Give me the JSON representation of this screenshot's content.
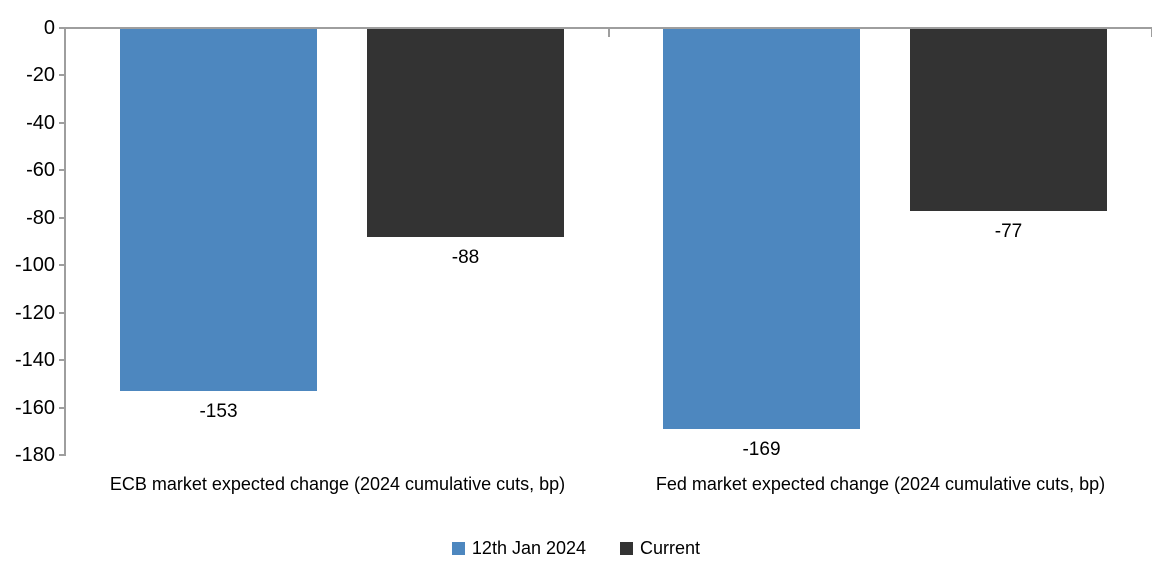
{
  "chart_data": {
    "type": "bar",
    "title": "",
    "xlabel": "",
    "ylabel": "",
    "grid": false,
    "categories": [
      "ECB market expected change (2024 cumulative cuts, bp)",
      "Fed market expected change (2024 cumulative cuts, bp)"
    ],
    "series": [
      {
        "name": "12th Jan 2024",
        "color": "#4D87BF",
        "values": [
          -153,
          -169
        ]
      },
      {
        "name": "Current",
        "color": "#333333",
        "values": [
          -88,
          -77
        ]
      }
    ],
    "data_labels": {
      "show": true,
      "values": [
        [
          "-153",
          "-169"
        ],
        [
          "-88",
          "-77"
        ]
      ]
    },
    "y_axis": {
      "max": 0,
      "min": -180,
      "step": 20,
      "tick_labels": [
        "0",
        "-20",
        "-40",
        "-60",
        "-80",
        "-100",
        "-120",
        "-140",
        "-160",
        "-180"
      ]
    },
    "legend": {
      "position": "bottom",
      "entries": [
        "12th Jan 2024",
        "Current"
      ]
    },
    "colors": {
      "axis_line": "#9E9E9E",
      "text": "#000000",
      "background": "#FFFFFF"
    }
  }
}
